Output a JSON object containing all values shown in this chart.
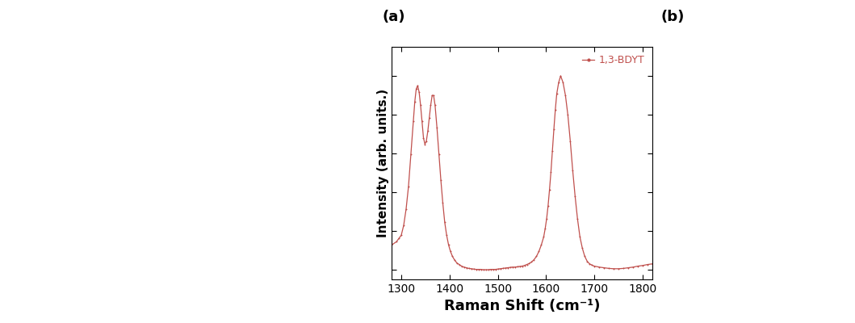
{
  "title_a": "(a)",
  "title_b": "(b)",
  "xlabel": "Raman Shift (cm⁻¹)",
  "ylabel": "Intensity (arb. units.)",
  "legend_label": "1,3-BDYT",
  "xlim": [
    1280,
    1820
  ],
  "xticks": [
    1300,
    1400,
    1500,
    1600,
    1700,
    1800
  ],
  "line_color": "#c0504d",
  "marker_color": "#c0504d",
  "background_color": "#ffffff",
  "plot_bg": "#ffffff",
  "ylabel_fontsize": 11,
  "xlabel_fontsize": 13,
  "tick_fontsize": 10,
  "legend_fontsize": 9,
  "title_fontsize": 13,
  "raman_x": [
    1280,
    1290,
    1295,
    1300,
    1305,
    1310,
    1315,
    1320,
    1325,
    1328,
    1331,
    1334,
    1337,
    1340,
    1343,
    1346,
    1349,
    1352,
    1355,
    1358,
    1361,
    1364,
    1367,
    1370,
    1374,
    1378,
    1382,
    1386,
    1390,
    1394,
    1398,
    1402,
    1406,
    1410,
    1415,
    1420,
    1425,
    1430,
    1435,
    1440,
    1445,
    1450,
    1455,
    1460,
    1465,
    1470,
    1475,
    1480,
    1485,
    1490,
    1495,
    1500,
    1505,
    1510,
    1515,
    1520,
    1525,
    1530,
    1535,
    1540,
    1545,
    1550,
    1555,
    1560,
    1565,
    1570,
    1575,
    1580,
    1585,
    1590,
    1595,
    1598,
    1601,
    1604,
    1607,
    1610,
    1613,
    1616,
    1619,
    1622,
    1626,
    1630,
    1635,
    1640,
    1645,
    1650,
    1655,
    1660,
    1665,
    1670,
    1675,
    1680,
    1685,
    1690,
    1695,
    1700,
    1710,
    1720,
    1730,
    1740,
    1750,
    1760,
    1770,
    1780,
    1790,
    1800,
    1810,
    1820
  ],
  "raman_y": [
    0.22,
    0.23,
    0.24,
    0.25,
    0.28,
    0.33,
    0.4,
    0.5,
    0.6,
    0.66,
    0.7,
    0.71,
    0.69,
    0.65,
    0.6,
    0.55,
    0.53,
    0.54,
    0.57,
    0.61,
    0.65,
    0.68,
    0.68,
    0.65,
    0.58,
    0.5,
    0.42,
    0.35,
    0.29,
    0.25,
    0.22,
    0.2,
    0.185,
    0.175,
    0.165,
    0.16,
    0.155,
    0.152,
    0.15,
    0.148,
    0.147,
    0.146,
    0.145,
    0.145,
    0.145,
    0.144,
    0.144,
    0.144,
    0.145,
    0.145,
    0.145,
    0.146,
    0.147,
    0.148,
    0.149,
    0.15,
    0.151,
    0.152,
    0.152,
    0.153,
    0.154,
    0.155,
    0.157,
    0.16,
    0.163,
    0.168,
    0.175,
    0.185,
    0.2,
    0.22,
    0.245,
    0.27,
    0.3,
    0.34,
    0.39,
    0.445,
    0.51,
    0.575,
    0.635,
    0.685,
    0.72,
    0.74,
    0.72,
    0.68,
    0.62,
    0.54,
    0.45,
    0.37,
    0.3,
    0.245,
    0.21,
    0.185,
    0.17,
    0.162,
    0.158,
    0.155,
    0.152,
    0.15,
    0.148,
    0.147,
    0.147,
    0.148,
    0.15,
    0.152,
    0.155,
    0.157,
    0.16,
    0.162
  ]
}
